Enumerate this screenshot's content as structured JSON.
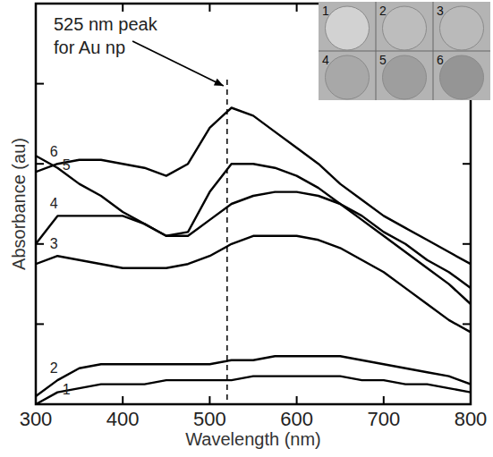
{
  "chart_data": {
    "type": "line",
    "x_label": "Wavelength (nm)",
    "y_label": "Absorbance (au)",
    "x": [
      300,
      325,
      350,
      375,
      400,
      425,
      450,
      475,
      500,
      525,
      550,
      575,
      600,
      625,
      650,
      675,
      700,
      725,
      750,
      775,
      800
    ],
    "series": [
      {
        "name": "1",
        "color": "#000000",
        "values": [
          0.0,
          0.03,
          0.04,
          0.05,
          0.05,
          0.05,
          0.06,
          0.06,
          0.06,
          0.06,
          0.07,
          0.07,
          0.07,
          0.07,
          0.07,
          0.06,
          0.06,
          0.05,
          0.05,
          0.04,
          0.03
        ]
      },
      {
        "name": "2",
        "color": "#000000",
        "values": [
          0.02,
          0.06,
          0.09,
          0.1,
          0.1,
          0.1,
          0.1,
          0.1,
          0.1,
          0.11,
          0.11,
          0.12,
          0.12,
          0.12,
          0.12,
          0.11,
          0.1,
          0.09,
          0.08,
          0.07,
          0.05
        ]
      },
      {
        "name": "3",
        "color": "#000000",
        "values": [
          0.35,
          0.37,
          0.36,
          0.35,
          0.34,
          0.34,
          0.34,
          0.35,
          0.37,
          0.4,
          0.42,
          0.42,
          0.42,
          0.41,
          0.39,
          0.36,
          0.33,
          0.29,
          0.25,
          0.21,
          0.18
        ]
      },
      {
        "name": "4",
        "color": "#000000",
        "values": [
          0.4,
          0.47,
          0.47,
          0.47,
          0.47,
          0.45,
          0.42,
          0.42,
          0.46,
          0.5,
          0.52,
          0.53,
          0.53,
          0.52,
          0.5,
          0.46,
          0.42,
          0.38,
          0.34,
          0.3,
          0.25
        ]
      },
      {
        "name": "5",
        "color": "#000000",
        "values": [
          0.62,
          0.59,
          0.55,
          0.52,
          0.48,
          0.45,
          0.42,
          0.43,
          0.53,
          0.6,
          0.6,
          0.59,
          0.57,
          0.54,
          0.5,
          0.47,
          0.43,
          0.4,
          0.36,
          0.33,
          0.29
        ]
      },
      {
        "name": "6",
        "color": "#000000",
        "values": [
          0.58,
          0.6,
          0.61,
          0.61,
          0.6,
          0.59,
          0.57,
          0.6,
          0.69,
          0.74,
          0.72,
          0.68,
          0.64,
          0.6,
          0.55,
          0.51,
          0.47,
          0.44,
          0.41,
          0.38,
          0.35
        ]
      }
    ],
    "xlim": [
      300,
      800
    ],
    "xticks": [
      300,
      400,
      500,
      600,
      700,
      800
    ],
    "ylim": [
      0,
      1
    ],
    "yticks": [
      0,
      0.2,
      0.4,
      0.6,
      0.8,
      1
    ],
    "tick_labels": "x",
    "grid": false,
    "reference_line": {
      "x": 520,
      "line_style": "dashed"
    },
    "annotation": {
      "lines": [
        "525 nm peak",
        "for Au np"
      ]
    },
    "inset": {
      "labels": [
        "1",
        "2",
        "3",
        "4",
        "5",
        "6"
      ]
    }
  }
}
